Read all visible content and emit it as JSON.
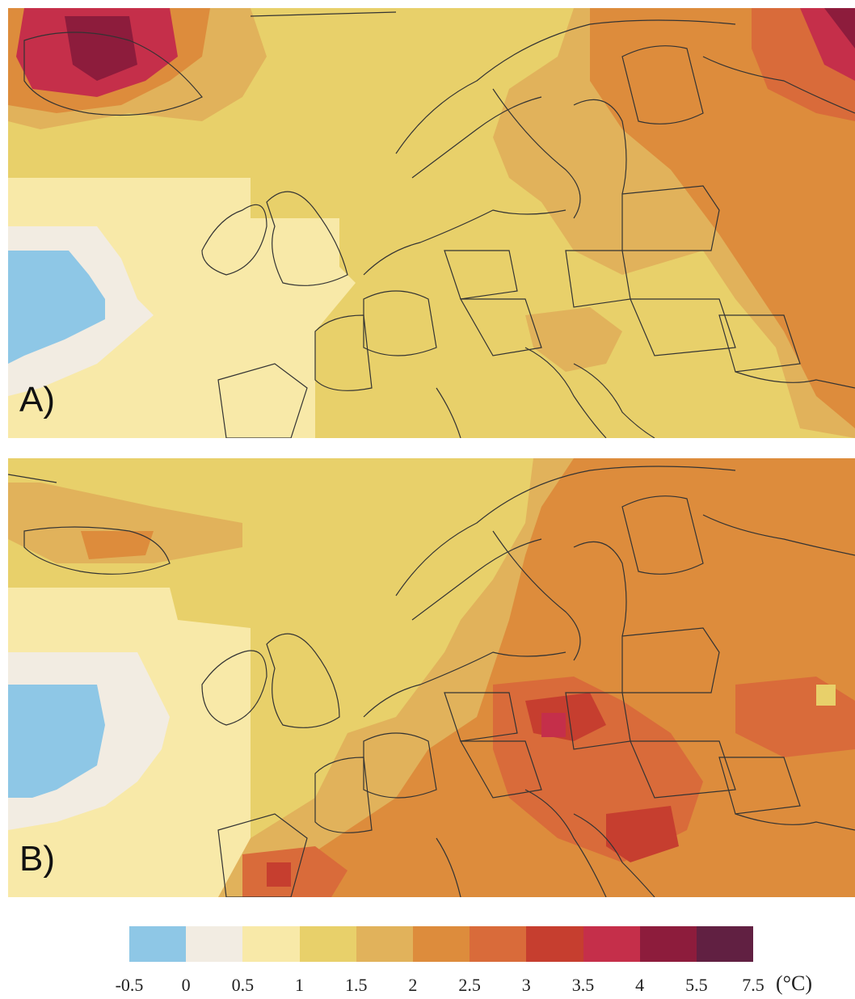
{
  "panels": [
    {
      "label": "A)"
    },
    {
      "label": "B)"
    }
  ],
  "legend": {
    "unit": "(°C)",
    "ticks": [
      "-0.5",
      "0",
      "0.5",
      "1",
      "1.5",
      "2",
      "2.5",
      "3",
      "3.5",
      "4",
      "5.5",
      "7.5"
    ],
    "colors": [
      "#8ec7e6",
      "#f2ece2",
      "#f8e9a8",
      "#e8d06a",
      "#e1b25b",
      "#dd8c3c",
      "#d96b3a",
      "#c63e2f",
      "#c52f4a",
      "#8d1c3c",
      "#612042"
    ]
  },
  "colors": {
    "border": "#333333",
    "background": "#ffffff"
  }
}
